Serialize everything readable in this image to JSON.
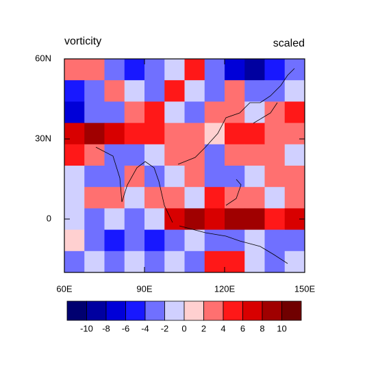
{
  "chart_data": {
    "type": "contour",
    "title": "vorticity",
    "subtitle": "scaled",
    "xlim": [
      60,
      150
    ],
    "ylim": [
      -20,
      60
    ],
    "xticks": [
      {
        "value": 60,
        "label": "60E"
      },
      {
        "value": 90,
        "label": "90E"
      },
      {
        "value": 120,
        "label": "120E"
      },
      {
        "value": 150,
        "label": "150E"
      }
    ],
    "yticks": [
      0,
      {
        "value": 30,
        "label": "30N"
      },
      {
        "value": 60,
        "label": "60N"
      }
    ],
    "levels": [
      -10,
      -8,
      -6,
      -4,
      -2,
      0,
      2,
      4,
      6,
      8,
      10
    ],
    "colors": [
      "#000070",
      "#0000a0",
      "#0000d8",
      "#1818ff",
      "#7070ff",
      "#d0d0ff",
      "#ffd0d0",
      "#ff7070",
      "#ff1818",
      "#d80000",
      "#a00000",
      "#700000"
    ],
    "values": [
      [
        3,
        2,
        -3,
        -5,
        -4,
        -2,
        5,
        -3,
        -8,
        -9,
        -6,
        -4
      ],
      [
        -6,
        -4,
        2,
        -2,
        -3,
        4,
        -2,
        -4,
        2,
        -3,
        -4,
        -2
      ],
      [
        -8,
        -4,
        -3,
        3,
        4,
        -2,
        -3,
        3,
        2,
        -2,
        3,
        4
      ],
      [
        6,
        8,
        6,
        5,
        4,
        3,
        2,
        1,
        4,
        5,
        3,
        2
      ],
      [
        4,
        3,
        -3,
        -4,
        -2,
        3,
        2,
        -3,
        2,
        3,
        2,
        -2
      ],
      [
        -2,
        -3,
        -4,
        2,
        -3,
        -2,
        3,
        -3,
        -3,
        -2,
        3,
        2
      ],
      [
        -2,
        2,
        3,
        -1,
        2,
        3,
        -2,
        4,
        3,
        3,
        -2,
        2
      ],
      [
        -2,
        -3,
        -2,
        -3,
        -2,
        6,
        9,
        6,
        8,
        8,
        5,
        6
      ],
      [
        1,
        -4,
        -6,
        -3,
        -6,
        -4,
        -2,
        -4,
        -3,
        -2,
        -4,
        -3
      ],
      [
        -3,
        -2,
        -4,
        -2,
        -3,
        -2,
        -3,
        4,
        5,
        -2,
        -3,
        -2
      ]
    ]
  }
}
